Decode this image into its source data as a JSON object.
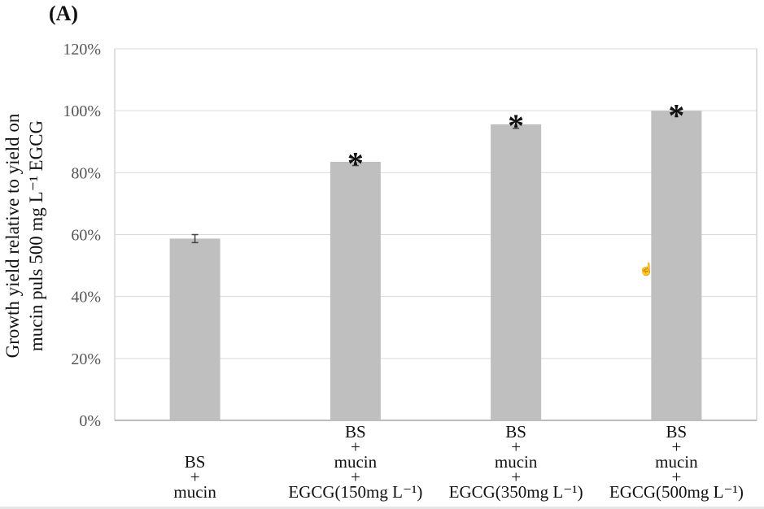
{
  "panel_label": "(A)",
  "cursor_icon": "hand-cursor-icon",
  "colors": {
    "bar": "#bfbfbf",
    "grid": "#d9d9d9",
    "axis": "#bfbfbf",
    "text": "#111111",
    "error": "#444444"
  },
  "chart_data": {
    "type": "bar",
    "ylabel_lines": [
      "Growth yield relative to yield on",
      "mucin puls 500 mg L⁻¹ EGCG"
    ],
    "yticks": [
      "0%",
      "20%",
      "40%",
      "60%",
      "80%",
      "100%",
      "120%"
    ],
    "ylim": [
      0,
      120
    ],
    "grid": true,
    "categories": [
      {
        "lines": [
          "BS",
          "+",
          "mucin"
        ]
      },
      {
        "lines": [
          "BS",
          "+",
          "mucin",
          "+",
          "EGCG(150mg L⁻¹)"
        ]
      },
      {
        "lines": [
          "BS",
          "+",
          "mucin",
          "+",
          "EGCG(350mg L⁻¹)"
        ]
      },
      {
        "lines": [
          "BS",
          "+",
          "mucin",
          "+",
          "EGCG(500mg L⁻¹)"
        ]
      }
    ],
    "values": [
      58.7,
      83.5,
      95.6,
      100
    ],
    "errors": [
      1.3,
      1.2,
      1.3,
      0.2
    ],
    "annotations": [
      "",
      "*",
      "*",
      "*"
    ]
  }
}
